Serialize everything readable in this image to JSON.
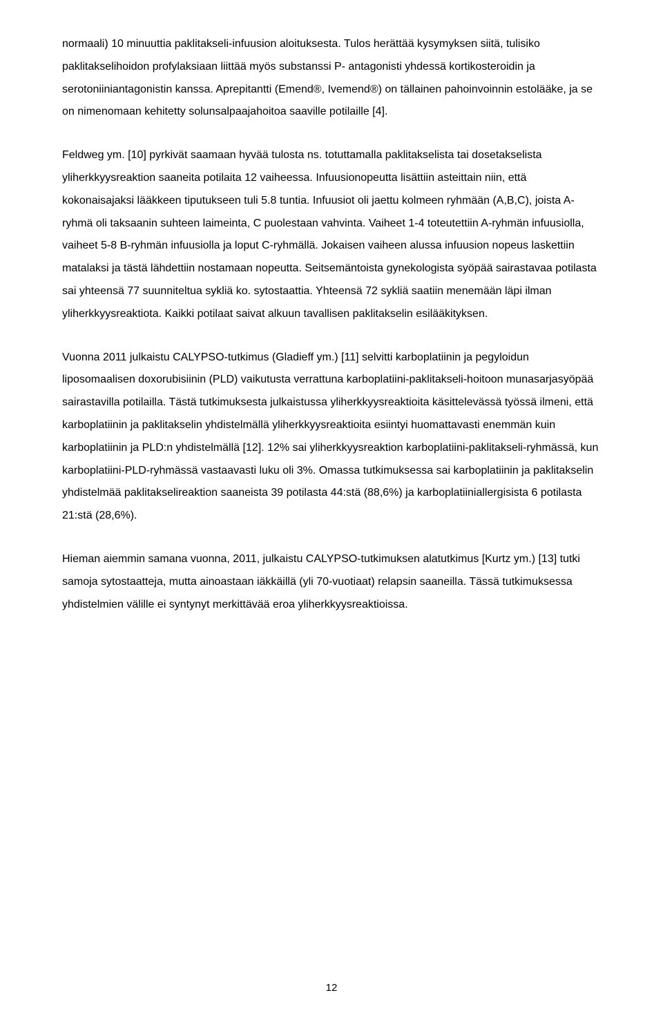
{
  "paragraphs": [
    "normaali) 10 minuuttia paklitakseli-infuusion aloituksesta. Tulos herättää kysymyksen siitä, tulisiko paklitakselihoidon profylaksiaan liittää myös substanssi P- antagonisti yhdessä kortikosteroidin ja serotoniiniantagonistin kanssa. Aprepitantti (Emend®, Ivemend®) on tällainen pahoinvoinnin estolääke, ja se on nimenomaan kehitetty solunsalpaajahoitoa saaville potilaille [4].",
    "Feldweg ym. [10] pyrkivät saamaan hyvää tulosta ns. totuttamalla paklitakselista tai dosetakselista yliherkkyysreaktion saaneita potilaita 12 vaiheessa. Infuusionopeutta lisättiin asteittain niin, että kokonaisajaksi lääkkeen tiputukseen tuli 5.8 tuntia. Infuusiot oli jaettu kolmeen ryhmään (A,B,C), joista A-ryhmä oli taksaanin suhteen laimeinta, C puolestaan vahvinta. Vaiheet 1-4 toteutettiin A-ryhmän infuusiolla, vaiheet 5-8 B-ryhmän infuusiolla ja loput C-ryhmällä. Jokaisen vaiheen alussa infuusion nopeus laskettiin matalaksi ja tästä lähdettiin nostamaan nopeutta. Seitsemäntoista gynekologista syöpää sairastavaa potilasta sai yhteensä 77 suunniteltua sykliä ko. sytostaattia. Yhteensä 72 sykliä saatiin menemään läpi ilman yliherkkyysreaktiota. Kaikki potilaat saivat alkuun tavallisen paklitakselin esilääkityksen.",
    "Vuonna 2011 julkaistu CALYPSO-tutkimus (Gladieff ym.) [11] selvitti karboplatiinin ja pegyloidun liposomaalisen doxorubisiinin (PLD) vaikutusta verrattuna karboplatiini-paklitakseli-hoitoon munasarjasyöpää sairastavilla potilailla. Tästä tutkimuksesta julkaistussa yliherkkyysreaktioita käsittelevässä työssä ilmeni, että karboplatiinin ja paklitakselin yhdistelmällä yliherkkyysreaktioita esiintyi huomattavasti enemmän kuin karboplatiinin ja PLD:n yhdistelmällä [12]. 12% sai yliherkkyysreaktion karboplatiini-paklitakseli-ryhmässä, kun karboplatiini-PLD-ryhmässä vastaavasti luku oli 3%. Omassa tutkimuksessa sai karboplatiinin ja paklitakselin yhdistelmää paklitakselireaktion saaneista 39 potilasta 44:stä (88,6%) ja karboplatiiniallergisista 6 potilasta 21:stä (28,6%).",
    "Hieman aiemmin samana vuonna, 2011, julkaistu CALYPSO-tutkimuksen alatutkimus [Kurtz ym.) [13] tutki samoja sytostaatteja, mutta ainoastaan iäkkäillä (yli 70-vuotiaat) relapsin saaneilla. Tässä tutkimuksessa yhdistelmien välille ei syntynyt merkittävää eroa yliherkkyysreaktioissa."
  ],
  "pageNumber": "12"
}
